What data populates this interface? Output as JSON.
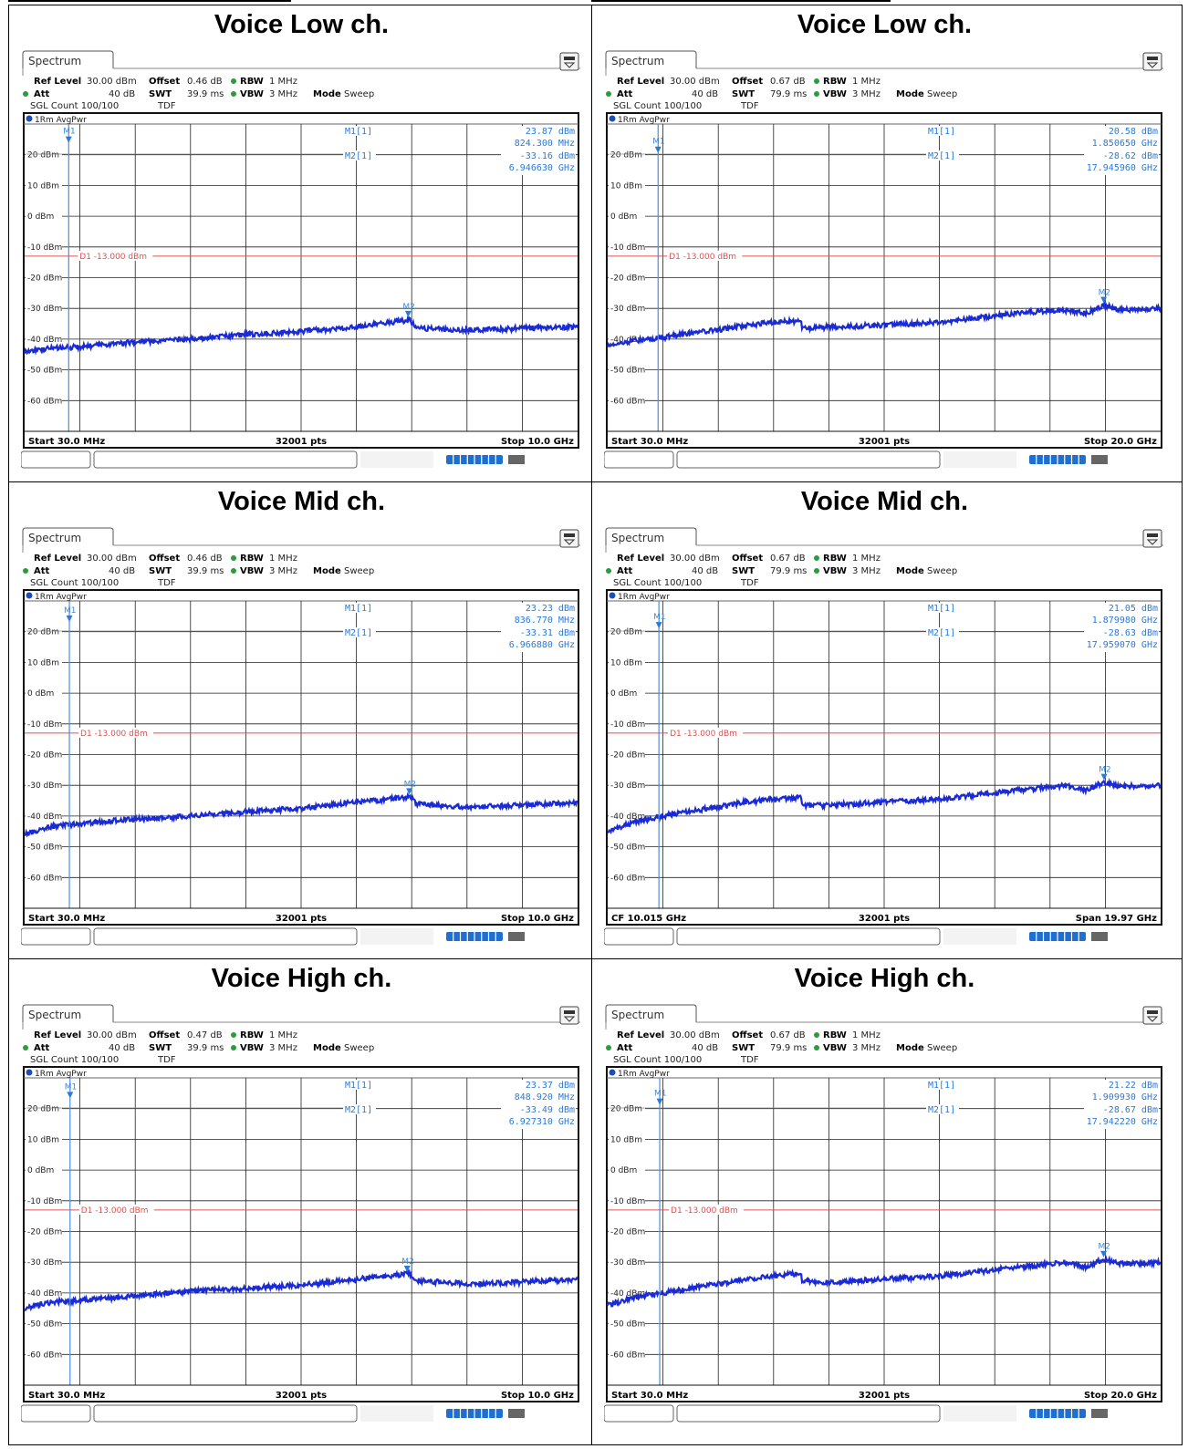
{
  "panels": [
    {
      "title": "Voice Low ch.",
      "tab": "Spectrum",
      "settings": {
        "ref_level_label": "Ref Level",
        "ref_level": "30.00 dBm",
        "att_label": "Att",
        "att": "40 dB",
        "offset_label": "Offset",
        "offset": "0.46 dB",
        "swt_label": "SWT",
        "swt": "39.9 ms",
        "rbw_label": "RBW",
        "rbw": "1 MHz",
        "vbw_label": "VBW",
        "vbw": "3 MHz",
        "mode_label": "Mode",
        "mode": "Sweep",
        "sgl_count": "SGL Count 100/100",
        "tdf": "TDF"
      },
      "trace_label": "1Rm AvgPwr",
      "markers": {
        "m1_label": "M1[1]",
        "m1_value": "23.87 dBm",
        "m1_freq": "824.300 MHz",
        "m2_label": "M2[1]",
        "m2_value": "-33.16 dBm",
        "m2_freq": "6.946630 GHz"
      },
      "footer": {
        "left": "Start 30.0 MHz",
        "center": "32001 pts",
        "right": "Stop 10.0 GHz"
      }
    },
    {
      "title": "Voice Low ch.",
      "tab": "Spectrum",
      "settings": {
        "ref_level_label": "Ref Level",
        "ref_level": "30.00 dBm",
        "att_label": "Att",
        "att": "40 dB",
        "offset_label": "Offset",
        "offset": "0.67 dB",
        "swt_label": "SWT",
        "swt": "79.9 ms",
        "rbw_label": "RBW",
        "rbw": "1 MHz",
        "vbw_label": "VBW",
        "vbw": "3 MHz",
        "mode_label": "Mode",
        "mode": "Sweep",
        "sgl_count": "SGL Count 100/100",
        "tdf": "TDF"
      },
      "trace_label": "1Rm AvgPwr",
      "markers": {
        "m1_label": "M1[1]",
        "m1_value": "20.58 dBm",
        "m1_freq": "1.850650 GHz",
        "m2_label": "M2[1]",
        "m2_value": "-28.62 dBm",
        "m2_freq": "17.945960 GHz"
      },
      "footer": {
        "left": "Start 30.0 MHz",
        "center": "32001 pts",
        "right": "Stop 20.0 GHz"
      }
    },
    {
      "title": "Voice Mid ch.",
      "tab": "Spectrum",
      "settings": {
        "ref_level_label": "Ref Level",
        "ref_level": "30.00 dBm",
        "att_label": "Att",
        "att": "40 dB",
        "offset_label": "Offset",
        "offset": "0.46 dB",
        "swt_label": "SWT",
        "swt": "39.9 ms",
        "rbw_label": "RBW",
        "rbw": "1 MHz",
        "vbw_label": "VBW",
        "vbw": "3 MHz",
        "mode_label": "Mode",
        "mode": "Sweep",
        "sgl_count": "SGL Count 100/100",
        "tdf": "TDF"
      },
      "trace_label": "1Rm AvgPwr",
      "markers": {
        "m1_label": "M1[1]",
        "m1_value": "23.23 dBm",
        "m1_freq": "836.770 MHz",
        "m2_label": "M2[1]",
        "m2_value": "-33.31 dBm",
        "m2_freq": "6.966880 GHz"
      },
      "footer": {
        "left": "Start 30.0 MHz",
        "center": "32001 pts",
        "right": "Stop 10.0 GHz"
      }
    },
    {
      "title": "Voice Mid ch.",
      "tab": "Spectrum",
      "settings": {
        "ref_level_label": "Ref Level",
        "ref_level": "30.00 dBm",
        "att_label": "Att",
        "att": "40 dB",
        "offset_label": "Offset",
        "offset": "0.67 dB",
        "swt_label": "SWT",
        "swt": "79.9 ms",
        "rbw_label": "RBW",
        "rbw": "1 MHz",
        "vbw_label": "VBW",
        "vbw": "3 MHz",
        "mode_label": "Mode",
        "mode": "Sweep",
        "sgl_count": "SGL Count 100/100",
        "tdf": "TDF"
      },
      "trace_label": "1Rm AvgPwr",
      "markers": {
        "m1_label": "M1[1]",
        "m1_value": "21.05 dBm",
        "m1_freq": "1.879980 GHz",
        "m2_label": "M2[1]",
        "m2_value": "-28.63 dBm",
        "m2_freq": "17.959070 GHz"
      },
      "footer": {
        "left": "CF 10.015 GHz",
        "center": "32001 pts",
        "right": "Span 19.97 GHz"
      }
    },
    {
      "title": "Voice High ch.",
      "tab": "Spectrum",
      "settings": {
        "ref_level_label": "Ref Level",
        "ref_level": "30.00 dBm",
        "att_label": "Att",
        "att": "40 dB",
        "offset_label": "Offset",
        "offset": "0.47 dB",
        "swt_label": "SWT",
        "swt": "39.9 ms",
        "rbw_label": "RBW",
        "rbw": "1 MHz",
        "vbw_label": "VBW",
        "vbw": "3 MHz",
        "mode_label": "Mode",
        "mode": "Sweep",
        "sgl_count": "SGL Count 100/100",
        "tdf": "TDF"
      },
      "trace_label": "1Rm AvgPwr",
      "markers": {
        "m1_label": "M1[1]",
        "m1_value": "23.37 dBm",
        "m1_freq": "848.920 MHz",
        "m2_label": "M2[1]",
        "m2_value": "-33.49 dBm",
        "m2_freq": "6.927310 GHz"
      },
      "footer": {
        "left": "Start 30.0 MHz",
        "center": "32001 pts",
        "right": "Stop 10.0 GHz"
      }
    },
    {
      "title": "Voice High ch.",
      "tab": "Spectrum",
      "settings": {
        "ref_level_label": "Ref Level",
        "ref_level": "30.00 dBm",
        "att_label": "Att",
        "att": "40 dB",
        "offset_label": "Offset",
        "offset": "0.67 dB",
        "swt_label": "SWT",
        "swt": "79.9 ms",
        "rbw_label": "RBW",
        "rbw": "1 MHz",
        "vbw_label": "VBW",
        "vbw": "3 MHz",
        "mode_label": "Mode",
        "mode": "Sweep",
        "sgl_count": "SGL Count 100/100",
        "tdf": "TDF"
      },
      "trace_label": "1Rm AvgPwr",
      "markers": {
        "m1_label": "M1[1]",
        "m1_value": "21.22 dBm",
        "m1_freq": "1.909930 GHz",
        "m2_label": "M2[1]",
        "m2_value": "-28.67 dBm",
        "m2_freq": "17.942220 GHz"
      },
      "footer": {
        "left": "Start 30.0 MHz",
        "center": "32001 pts",
        "right": "Stop 20.0 GHz"
      }
    }
  ],
  "chart_data": [
    {
      "type": "line",
      "panel": 0,
      "ylim": [
        -70,
        30
      ],
      "xlim_ghz": [
        0.03,
        10.0
      ],
      "y_ticks": [
        "20 dBm",
        "10 dBm",
        "0 dBm",
        "-10 dBm",
        "-20 dBm",
        "-30 dBm",
        "-40 dBm",
        "-50 dBm",
        "-60 dBm"
      ],
      "limit_line": {
        "label": "D1 -13.000 dBm",
        "value": -13.0
      },
      "markers": [
        {
          "label": "M1",
          "x": 0.8243,
          "y": 23.87
        },
        {
          "label": "M2",
          "x": 6.94663,
          "y": -33.16
        }
      ],
      "trace_color": "#1a2bd6",
      "series": [
        {
          "x": [
            0.03,
            0.5,
            1.0,
            2.0,
            3.0,
            4.0,
            5.0,
            6.0,
            6.9,
            6.95,
            7.1,
            8.0,
            9.0,
            10.0
          ],
          "y": [
            -44,
            -43,
            -42.5,
            -41,
            -40,
            -38.5,
            -37.5,
            -36,
            -34,
            -33.2,
            -36.5,
            -37,
            -36.5,
            -36
          ]
        }
      ]
    },
    {
      "type": "line",
      "panel": 1,
      "ylim": [
        -70,
        30
      ],
      "xlim_ghz": [
        0.03,
        20.0
      ],
      "y_ticks": [
        "20 dBm",
        "10 dBm",
        "0 dBm",
        "-10 dBm",
        "-20 dBm",
        "-30 dBm",
        "-40 dBm",
        "-50 dBm",
        "-60 dBm"
      ],
      "limit_line": {
        "label": "D1 -13.000 dBm",
        "value": -13.0
      },
      "markers": [
        {
          "label": "M1",
          "x": 1.85065,
          "y": 20.58
        },
        {
          "label": "M2",
          "x": 17.94596,
          "y": -28.62
        }
      ],
      "trace_color": "#1a2bd6",
      "series": [
        {
          "x": [
            0.03,
            1.0,
            2.0,
            3.0,
            4.0,
            5.0,
            6.0,
            7.0,
            7.05,
            8.0,
            10.0,
            12.0,
            14.0,
            15.5,
            16.5,
            17.3,
            17.95,
            18.5,
            20.0
          ],
          "y": [
            -42,
            -40.5,
            -39.5,
            -38,
            -37,
            -35.5,
            -34.5,
            -34,
            -36.5,
            -36,
            -35.5,
            -34.5,
            -32.5,
            -31,
            -30.5,
            -31.5,
            -29,
            -30.5,
            -30
          ]
        }
      ]
    },
    {
      "type": "line",
      "panel": 2,
      "ylim": [
        -70,
        30
      ],
      "xlim_ghz": [
        0.03,
        10.0
      ],
      "y_ticks": [
        "20 dBm",
        "10 dBm",
        "0 dBm",
        "-10 dBm",
        "-20 dBm",
        "-30 dBm",
        "-40 dBm",
        "-50 dBm",
        "-60 dBm"
      ],
      "limit_line": {
        "label": "D1 -13.000 dBm",
        "value": -13.0
      },
      "markers": [
        {
          "label": "M1",
          "x": 0.83677,
          "y": 23.23
        },
        {
          "label": "M2",
          "x": 6.96688,
          "y": -33.31
        }
      ],
      "trace_color": "#1a2bd6",
      "series": [
        {
          "x": [
            0.03,
            0.5,
            1.0,
            2.0,
            3.0,
            4.0,
            5.0,
            6.0,
            6.9,
            6.97,
            7.1,
            8.0,
            9.0,
            10.0
          ],
          "y": [
            -46,
            -43.5,
            -42.5,
            -41,
            -40,
            -38.5,
            -37.5,
            -35.5,
            -34,
            -33.3,
            -36,
            -37,
            -36.5,
            -35.5
          ]
        }
      ]
    },
    {
      "type": "line",
      "panel": 3,
      "ylim": [
        -70,
        30
      ],
      "xlim_ghz": [
        0.03,
        20.0
      ],
      "y_ticks": [
        "20 dBm",
        "10 dBm",
        "0 dBm",
        "-10 dBm",
        "-20 dBm",
        "-30 dBm",
        "-40 dBm",
        "-50 dBm",
        "-60 dBm"
      ],
      "limit_line": {
        "label": "D1 -13.000 dBm",
        "value": -13.0
      },
      "markers": [
        {
          "label": "M1",
          "x": 1.87998,
          "y": 21.05
        },
        {
          "label": "M2",
          "x": 17.95907,
          "y": -28.63
        }
      ],
      "trace_color": "#1a2bd6",
      "series": [
        {
          "x": [
            0.03,
            1.0,
            2.0,
            3.0,
            4.0,
            5.0,
            6.0,
            7.0,
            7.05,
            8.0,
            10.0,
            12.0,
            14.0,
            15.5,
            16.5,
            17.3,
            17.96,
            18.5,
            20.0
          ],
          "y": [
            -45,
            -42,
            -40,
            -38.5,
            -37,
            -35.5,
            -34.5,
            -34,
            -36.5,
            -36.5,
            -35.5,
            -34.5,
            -32.5,
            -31,
            -30,
            -31.5,
            -29,
            -30.5,
            -30
          ]
        }
      ]
    },
    {
      "type": "line",
      "panel": 4,
      "ylim": [
        -70,
        30
      ],
      "xlim_ghz": [
        0.03,
        10.0
      ],
      "y_ticks": [
        "20 dBm",
        "10 dBm",
        "0 dBm",
        "-10 dBm",
        "-20 dBm",
        "-30 dBm",
        "-40 dBm",
        "-50 dBm",
        "-60 dBm"
      ],
      "limit_line": {
        "label": "D1 -13.000 dBm",
        "value": -13.0
      },
      "markers": [
        {
          "label": "M1",
          "x": 0.84892,
          "y": 23.37
        },
        {
          "label": "M2",
          "x": 6.92731,
          "y": -33.49
        }
      ],
      "trace_color": "#1a2bd6",
      "series": [
        {
          "x": [
            0.03,
            0.5,
            1.0,
            2.0,
            3.0,
            4.0,
            5.0,
            6.0,
            6.85,
            6.93,
            7.1,
            8.0,
            9.0,
            10.0
          ],
          "y": [
            -45,
            -43,
            -42.5,
            -41,
            -39.5,
            -38.5,
            -37.5,
            -35.5,
            -34,
            -33.5,
            -36,
            -37,
            -36.5,
            -35.5
          ]
        }
      ]
    },
    {
      "type": "line",
      "panel": 5,
      "ylim": [
        -70,
        30
      ],
      "xlim_ghz": [
        0.03,
        20.0
      ],
      "y_ticks": [
        "20 dBm",
        "10 dBm",
        "0 dBm",
        "-10 dBm",
        "-20 dBm",
        "-30 dBm",
        "-40 dBm",
        "-50 dBm",
        "-60 dBm"
      ],
      "limit_line": {
        "label": "D1 -13.000 dBm",
        "value": -13.0
      },
      "markers": [
        {
          "label": "M1",
          "x": 1.90993,
          "y": 21.22
        },
        {
          "label": "M2",
          "x": 17.94222,
          "y": -28.67
        }
      ],
      "trace_color": "#1a2bd6",
      "series": [
        {
          "x": [
            0.03,
            1.0,
            2.0,
            3.0,
            4.0,
            5.0,
            6.0,
            7.0,
            7.05,
            8.0,
            10.0,
            12.0,
            14.0,
            15.5,
            16.5,
            17.3,
            17.94,
            18.5,
            20.0
          ],
          "y": [
            -44,
            -41.5,
            -40,
            -38.5,
            -37,
            -35.5,
            -34.5,
            -33.5,
            -36,
            -36.5,
            -35.5,
            -34.5,
            -32.5,
            -31,
            -30,
            -31.5,
            -29,
            -30.5,
            -30
          ]
        }
      ]
    }
  ]
}
